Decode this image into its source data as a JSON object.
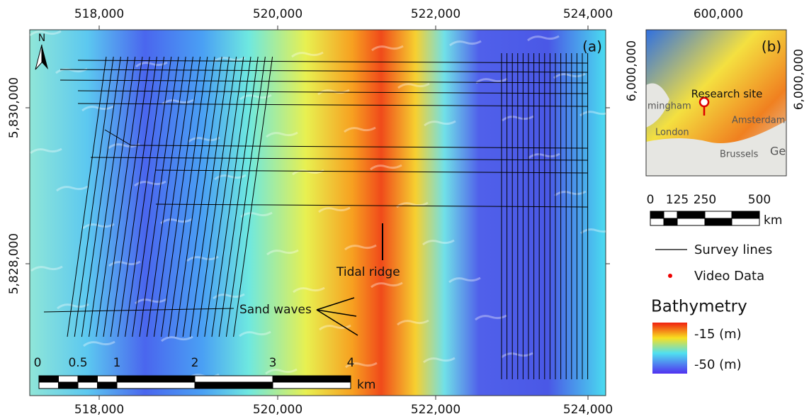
{
  "main_map": {
    "panel_label": "(a)",
    "north": "N",
    "x_ticks_top": [
      "518,000",
      "520,000",
      "522,000",
      "524,000"
    ],
    "x_ticks_bottom": [
      "518,000",
      "520,000",
      "522,000",
      "524,000"
    ],
    "y_ticks": [
      "5,830,000",
      "5,828,000"
    ],
    "annotations": {
      "sand_waves": "Sand waves",
      "tidal_ridge": "Tidal ridge"
    },
    "scale_bar": {
      "labels": [
        "0",
        "0.5",
        "1",
        "2",
        "3",
        "4"
      ],
      "unit": "km"
    }
  },
  "inset_map": {
    "panel_label": "(b)",
    "x_tick": "600,000",
    "y_tick_left": "6,000,000",
    "y_tick_right": "6,000,000",
    "site_label": "Research site",
    "places": [
      "mingham",
      "London",
      "Amsterdam",
      "Brussels",
      "Ge"
    ],
    "scale_bar": {
      "labels": [
        "0",
        "125",
        "250",
        "500"
      ],
      "unit": "km"
    }
  },
  "legend": {
    "survey_lines": "Survey lines",
    "video_data": "Video Data",
    "bathymetry_title": "Bathymetry",
    "bathymetry_high": "-15 (m)",
    "bathymetry_low": "-50 (m)"
  }
}
